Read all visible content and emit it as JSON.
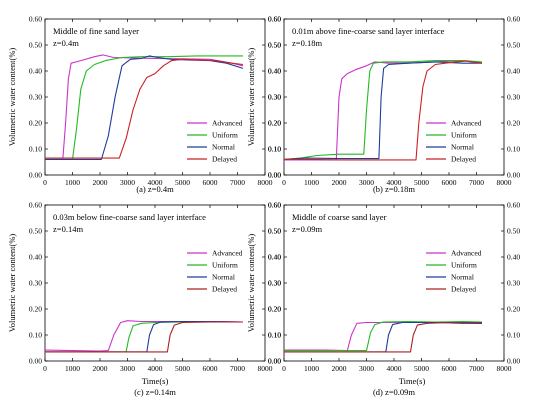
{
  "figure": {
    "shared_ylabel": "Volumetric water content(%)",
    "shared_xlabel": "Time(s)"
  },
  "chart_data": [
    {
      "type": "line",
      "caption": "(a) z=0.4m",
      "annotation": [
        "Middle of fine sand layer",
        "z=0.4m"
      ],
      "xlabel": "",
      "ylabel": "Volumetric water content(%)",
      "xlim": [
        0,
        8000
      ],
      "ylim": [
        0,
        0.6
      ],
      "xticks": [
        "0",
        "1000",
        "2000",
        "3000",
        "4000",
        "5000",
        "6000",
        "7000",
        "8000"
      ],
      "yticks": [
        "0.00",
        "0.10",
        "0.20",
        "0.30",
        "0.40",
        "0.50",
        "0.60"
      ],
      "legend_position": "lower-right",
      "series": [
        {
          "name": "Advanced",
          "color": "#cc33cc",
          "points": [
            [
              0,
              0.065
            ],
            [
              650,
              0.065
            ],
            [
              750,
              0.2
            ],
            [
              850,
              0.37
            ],
            [
              950,
              0.43
            ],
            [
              1300,
              0.44
            ],
            [
              1800,
              0.455
            ],
            [
              2100,
              0.462
            ],
            [
              2500,
              0.452
            ],
            [
              3200,
              0.45
            ],
            [
              4000,
              0.448
            ],
            [
              5000,
              0.447
            ],
            [
              6000,
              0.445
            ],
            [
              6800,
              0.43
            ],
            [
              7200,
              0.42
            ]
          ]
        },
        {
          "name": "Uniform",
          "color": "#22bb22",
          "points": [
            [
              0,
              0.06
            ],
            [
              1000,
              0.06
            ],
            [
              1150,
              0.18
            ],
            [
              1300,
              0.33
            ],
            [
              1500,
              0.4
            ],
            [
              1800,
              0.425
            ],
            [
              2200,
              0.44
            ],
            [
              2800,
              0.452
            ],
            [
              3500,
              0.455
            ],
            [
              4500,
              0.455
            ],
            [
              5500,
              0.458
            ],
            [
              6500,
              0.458
            ],
            [
              7200,
              0.458
            ]
          ]
        },
        {
          "name": "Normal",
          "color": "#1f3d99",
          "points": [
            [
              0,
              0.06
            ],
            [
              2050,
              0.06
            ],
            [
              2300,
              0.15
            ],
            [
              2550,
              0.3
            ],
            [
              2800,
              0.42
            ],
            [
              3100,
              0.445
            ],
            [
              3500,
              0.448
            ],
            [
              3800,
              0.458
            ],
            [
              4100,
              0.452
            ],
            [
              4600,
              0.445
            ],
            [
              5300,
              0.442
            ],
            [
              6000,
              0.44
            ],
            [
              6600,
              0.43
            ],
            [
              7200,
              0.41
            ]
          ]
        },
        {
          "name": "Delayed",
          "color": "#cc2222",
          "points": [
            [
              0,
              0.065
            ],
            [
              2700,
              0.065
            ],
            [
              2950,
              0.14
            ],
            [
              3200,
              0.25
            ],
            [
              3450,
              0.33
            ],
            [
              3700,
              0.375
            ],
            [
              4000,
              0.39
            ],
            [
              4300,
              0.42
            ],
            [
              4600,
              0.44
            ],
            [
              5000,
              0.445
            ],
            [
              5600,
              0.442
            ],
            [
              6200,
              0.44
            ],
            [
              6800,
              0.43
            ],
            [
              7200,
              0.425
            ]
          ]
        }
      ]
    },
    {
      "type": "line",
      "caption": "(b) z=0.18m",
      "annotation": [
        "0.01m above fine-coarse sand layer interface",
        "z=0.18m"
      ],
      "xlabel": "",
      "ylabel": "Volumetric water content(%)",
      "xlim": [
        0,
        8000
      ],
      "ylim": [
        0,
        0.6
      ],
      "xticks": [
        "0",
        "1000",
        "2000",
        "3000",
        "4000",
        "5000",
        "6000",
        "7000",
        "8000"
      ],
      "yticks": [
        "0.00",
        "0.10",
        "0.20",
        "0.30",
        "0.40",
        "0.50",
        "0.60"
      ],
      "legend_position": "lower-right",
      "series": [
        {
          "name": "Advanced",
          "color": "#cc33cc",
          "points": [
            [
              0,
              0.058
            ],
            [
              1900,
              0.058
            ],
            [
              2000,
              0.3
            ],
            [
              2100,
              0.37
            ],
            [
              2300,
              0.39
            ],
            [
              2600,
              0.405
            ],
            [
              3000,
              0.42
            ],
            [
              3300,
              0.435
            ],
            [
              3800,
              0.43
            ],
            [
              4500,
              0.43
            ],
            [
              5500,
              0.435
            ],
            [
              6500,
              0.44
            ],
            [
              7200,
              0.432
            ]
          ]
        },
        {
          "name": "Uniform",
          "color": "#22bb22",
          "points": [
            [
              0,
              0.06
            ],
            [
              600,
              0.065
            ],
            [
              1200,
              0.075
            ],
            [
              2000,
              0.08
            ],
            [
              2900,
              0.08
            ],
            [
              3000,
              0.25
            ],
            [
              3120,
              0.4
            ],
            [
              3250,
              0.43
            ],
            [
              3600,
              0.435
            ],
            [
              4500,
              0.435
            ],
            [
              5500,
              0.44
            ],
            [
              6500,
              0.44
            ],
            [
              7200,
              0.435
            ]
          ]
        },
        {
          "name": "Normal",
          "color": "#1f3d99",
          "points": [
            [
              0,
              0.06
            ],
            [
              800,
              0.065
            ],
            [
              2000,
              0.063
            ],
            [
              3000,
              0.063
            ],
            [
              3450,
              0.063
            ],
            [
              3530,
              0.3
            ],
            [
              3620,
              0.41
            ],
            [
              3800,
              0.425
            ],
            [
              4500,
              0.43
            ],
            [
              5500,
              0.435
            ],
            [
              6500,
              0.43
            ],
            [
              7200,
              0.43
            ]
          ]
        },
        {
          "name": "Delayed",
          "color": "#cc2222",
          "points": [
            [
              0,
              0.06
            ],
            [
              1000,
              0.06
            ],
            [
              2000,
              0.058
            ],
            [
              3500,
              0.058
            ],
            [
              4800,
              0.058
            ],
            [
              4900,
              0.2
            ],
            [
              5050,
              0.34
            ],
            [
              5200,
              0.4
            ],
            [
              5500,
              0.425
            ],
            [
              6000,
              0.432
            ],
            [
              6600,
              0.438
            ],
            [
              7200,
              0.43
            ]
          ]
        }
      ]
    },
    {
      "type": "line",
      "caption": "(c) z=0.14m",
      "annotation": [
        "0.03m below fine-coarse sand layer interface",
        "z=0.14m"
      ],
      "xlabel": "Time(s)",
      "ylabel": "Volumetric water content(%)",
      "xlim": [
        0,
        8000
      ],
      "ylim": [
        0,
        0.6
      ],
      "xticks": [
        "0",
        "1000",
        "2000",
        "3000",
        "4000",
        "5000",
        "6000",
        "7000",
        "8000"
      ],
      "yticks": [
        "0.00",
        "0.10",
        "0.20",
        "0.30",
        "0.40",
        "0.50",
        "0.60"
      ],
      "legend_position": "upper-right",
      "series": [
        {
          "name": "Advanced",
          "color": "#cc33cc",
          "points": [
            [
              0,
              0.042
            ],
            [
              1000,
              0.04
            ],
            [
              2000,
              0.038
            ],
            [
              2300,
              0.04
            ],
            [
              2500,
              0.1
            ],
            [
              2750,
              0.148
            ],
            [
              3000,
              0.155
            ],
            [
              3500,
              0.152
            ],
            [
              4500,
              0.152
            ],
            [
              5500,
              0.152
            ],
            [
              6500,
              0.152
            ],
            [
              7200,
              0.15
            ]
          ]
        },
        {
          "name": "Uniform",
          "color": "#22bb22",
          "points": [
            [
              0,
              0.035
            ],
            [
              1500,
              0.035
            ],
            [
              2950,
              0.035
            ],
            [
              3050,
              0.09
            ],
            [
              3200,
              0.135
            ],
            [
              3500,
              0.145
            ],
            [
              4000,
              0.148
            ],
            [
              5000,
              0.15
            ],
            [
              6000,
              0.15
            ],
            [
              7200,
              0.15
            ]
          ]
        },
        {
          "name": "Normal",
          "color": "#1f3d99",
          "points": [
            [
              0,
              0.035
            ],
            [
              2000,
              0.035
            ],
            [
              3700,
              0.035
            ],
            [
              3800,
              0.1
            ],
            [
              3950,
              0.14
            ],
            [
              4200,
              0.15
            ],
            [
              5000,
              0.152
            ],
            [
              6000,
              0.152
            ],
            [
              7200,
              0.15
            ]
          ]
        },
        {
          "name": "Delayed",
          "color": "#aa2222",
          "points": [
            [
              0,
              0.035
            ],
            [
              2000,
              0.035
            ],
            [
              4450,
              0.035
            ],
            [
              4550,
              0.1
            ],
            [
              4700,
              0.138
            ],
            [
              5000,
              0.148
            ],
            [
              6000,
              0.15
            ],
            [
              7200,
              0.15
            ]
          ]
        }
      ]
    },
    {
      "type": "line",
      "caption": "(d) z=0.09m",
      "annotation": [
        "Middle of coarse sand layer",
        "z=0.09m"
      ],
      "xlabel": "Time(s)",
      "ylabel": "Volumetric water content(%)",
      "xlim": [
        0,
        8000
      ],
      "ylim": [
        0,
        0.6
      ],
      "xticks": [
        "0",
        "1000",
        "2000",
        "3000",
        "4000",
        "5000",
        "6000",
        "7000",
        "8000"
      ],
      "yticks": [
        "0.00",
        "0.10",
        "0.20",
        "0.30",
        "0.40",
        "0.50",
        "0.60"
      ],
      "legend_position": "upper-right",
      "series": [
        {
          "name": "Advanced",
          "color": "#cc33cc",
          "points": [
            [
              0,
              0.042
            ],
            [
              1500,
              0.042
            ],
            [
              2300,
              0.04
            ],
            [
              2450,
              0.1
            ],
            [
              2650,
              0.145
            ],
            [
              3000,
              0.148
            ],
            [
              4000,
              0.148
            ],
            [
              5000,
              0.148
            ],
            [
              6000,
              0.148
            ],
            [
              7200,
              0.145
            ]
          ]
        },
        {
          "name": "Uniform",
          "color": "#22bb22",
          "points": [
            [
              0,
              0.04
            ],
            [
              1500,
              0.04
            ],
            [
              3000,
              0.04
            ],
            [
              3150,
              0.11
            ],
            [
              3300,
              0.14
            ],
            [
              3600,
              0.15
            ],
            [
              4500,
              0.152
            ],
            [
              5500,
              0.15
            ],
            [
              6500,
              0.152
            ],
            [
              7200,
              0.15
            ]
          ]
        },
        {
          "name": "Normal",
          "color": "#1f3d99",
          "points": [
            [
              0,
              0.035
            ],
            [
              2000,
              0.035
            ],
            [
              3700,
              0.035
            ],
            [
              3800,
              0.1
            ],
            [
              3950,
              0.14
            ],
            [
              4300,
              0.148
            ],
            [
              5500,
              0.148
            ],
            [
              6500,
              0.145
            ],
            [
              7200,
              0.145
            ]
          ]
        },
        {
          "name": "Delayed",
          "color": "#aa2222",
          "points": [
            [
              0,
              0.035
            ],
            [
              2000,
              0.035
            ],
            [
              4600,
              0.035
            ],
            [
              4700,
              0.1
            ],
            [
              4850,
              0.138
            ],
            [
              5200,
              0.145
            ],
            [
              6000,
              0.148
            ],
            [
              7200,
              0.148
            ]
          ]
        }
      ]
    }
  ]
}
